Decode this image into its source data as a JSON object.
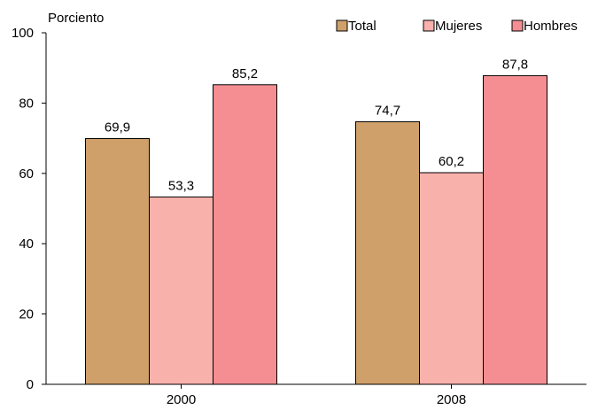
{
  "chart_data": {
    "type": "bar",
    "title": "",
    "ylabel": "Porciento",
    "xlabel": "",
    "categories": [
      "2000",
      "2008"
    ],
    "series": [
      {
        "name": "Total",
        "values": [
          69.9,
          74.7
        ],
        "labels": [
          "69,9",
          "74,7"
        ],
        "color": "#CFA06A"
      },
      {
        "name": "Mujeres",
        "values": [
          53.3,
          60.2
        ],
        "labels": [
          "53,3",
          "60,2"
        ],
        "color": "#F9B1AB"
      },
      {
        "name": "Hombres",
        "values": [
          85.2,
          87.8
        ],
        "labels": [
          "85,2",
          "87,8"
        ],
        "color": "#F48E92"
      }
    ],
    "ylim": [
      0,
      100
    ],
    "yticks": [
      0,
      20,
      40,
      60,
      80,
      100
    ],
    "ytick_labels": [
      "0",
      "20",
      "40",
      "60",
      "80",
      "100"
    ],
    "grid": false,
    "legend_position": "top-right"
  }
}
